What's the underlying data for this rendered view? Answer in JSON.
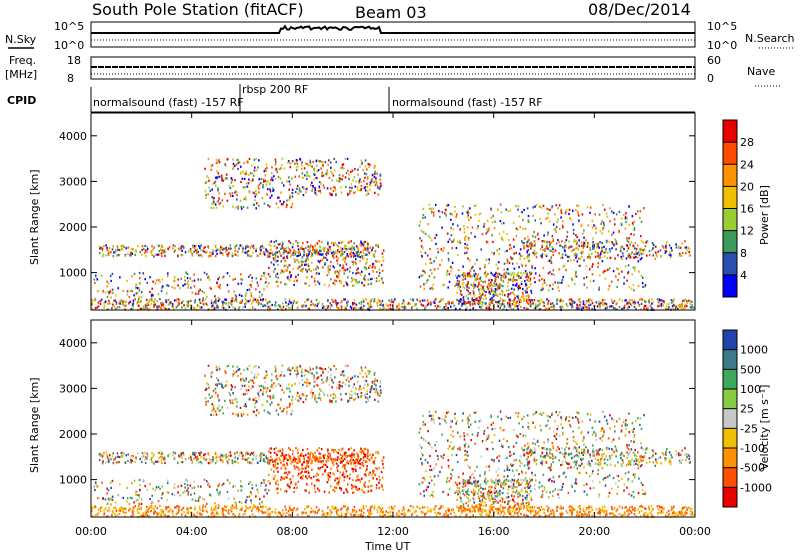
{
  "header": {
    "title": "South Pole Station (fitACF)",
    "beam": "Beam 03",
    "date": "08/Dec/2014"
  },
  "left_labels": {
    "nsky": "N.Sky",
    "freq": "Freq.",
    "freq_unit": "[MHz]",
    "cpid": "CPID"
  },
  "right_labels": {
    "nsearch": "N.Search",
    "nave": "Nave"
  },
  "ticks": {
    "noise_left": [
      "10^5",
      "10^0"
    ],
    "noise_right": [
      "10^5",
      "10^0"
    ],
    "freq_left": [
      "18",
      "8"
    ],
    "freq_right": [
      "60",
      "0"
    ],
    "range_y": [
      "4000",
      "3000",
      "2000",
      "1000"
    ],
    "time_x": [
      "00:00",
      "04:00",
      "08:00",
      "12:00",
      "16:00",
      "20:00",
      "00:00"
    ]
  },
  "cpid": {
    "seg1": "normalsound (fast) -157 RF",
    "seg2": "rbsp 200 RF",
    "seg3": "normalsound (fast) -157 RF"
  },
  "axes": {
    "range_label": "Slant Range [km]",
    "time_label": "Time UT"
  },
  "power_bar": {
    "label": "Power [dB]",
    "ticks": [
      "28",
      "24",
      "20",
      "16",
      "12",
      "8",
      "4"
    ],
    "colors": [
      "#e80000",
      "#ff4a00",
      "#ff9000",
      "#f0c000",
      "#9acd32",
      "#3c9a5a",
      "#2a4fb0",
      "#0000ff"
    ]
  },
  "velocity_bar": {
    "label": "Velocity [m s⁻¹]",
    "ticks": [
      "1000",
      "500",
      "100",
      "25",
      "-25",
      "-100",
      "-500",
      "-1000"
    ],
    "colors": [
      "#2244aa",
      "#3b7a8a",
      "#3caa5a",
      "#88cc44",
      "#c8c8c8",
      "#f0c000",
      "#ff9000",
      "#ff5000",
      "#e80000"
    ]
  },
  "chart_data": [
    {
      "type": "heatmap",
      "title": "Power",
      "xlabel": "Time UT",
      "ylabel": "Slant Range [km]",
      "x_range_hours": [
        0,
        24
      ],
      "y_range_km": [
        180,
        4500
      ],
      "colorbar": {
        "label": "Power [dB]",
        "ticks": [
          4,
          8,
          12,
          16,
          20,
          24,
          28
        ]
      }
    },
    {
      "type": "heatmap",
      "title": "Velocity",
      "xlabel": "Time UT",
      "ylabel": "Slant Range [km]",
      "x_range_hours": [
        0,
        24
      ],
      "y_range_km": [
        180,
        4500
      ],
      "colorbar": {
        "label": "Velocity [m s^-1]",
        "ticks": [
          1000,
          500,
          100,
          25,
          -25,
          -100,
          -500,
          -1000
        ]
      }
    }
  ]
}
